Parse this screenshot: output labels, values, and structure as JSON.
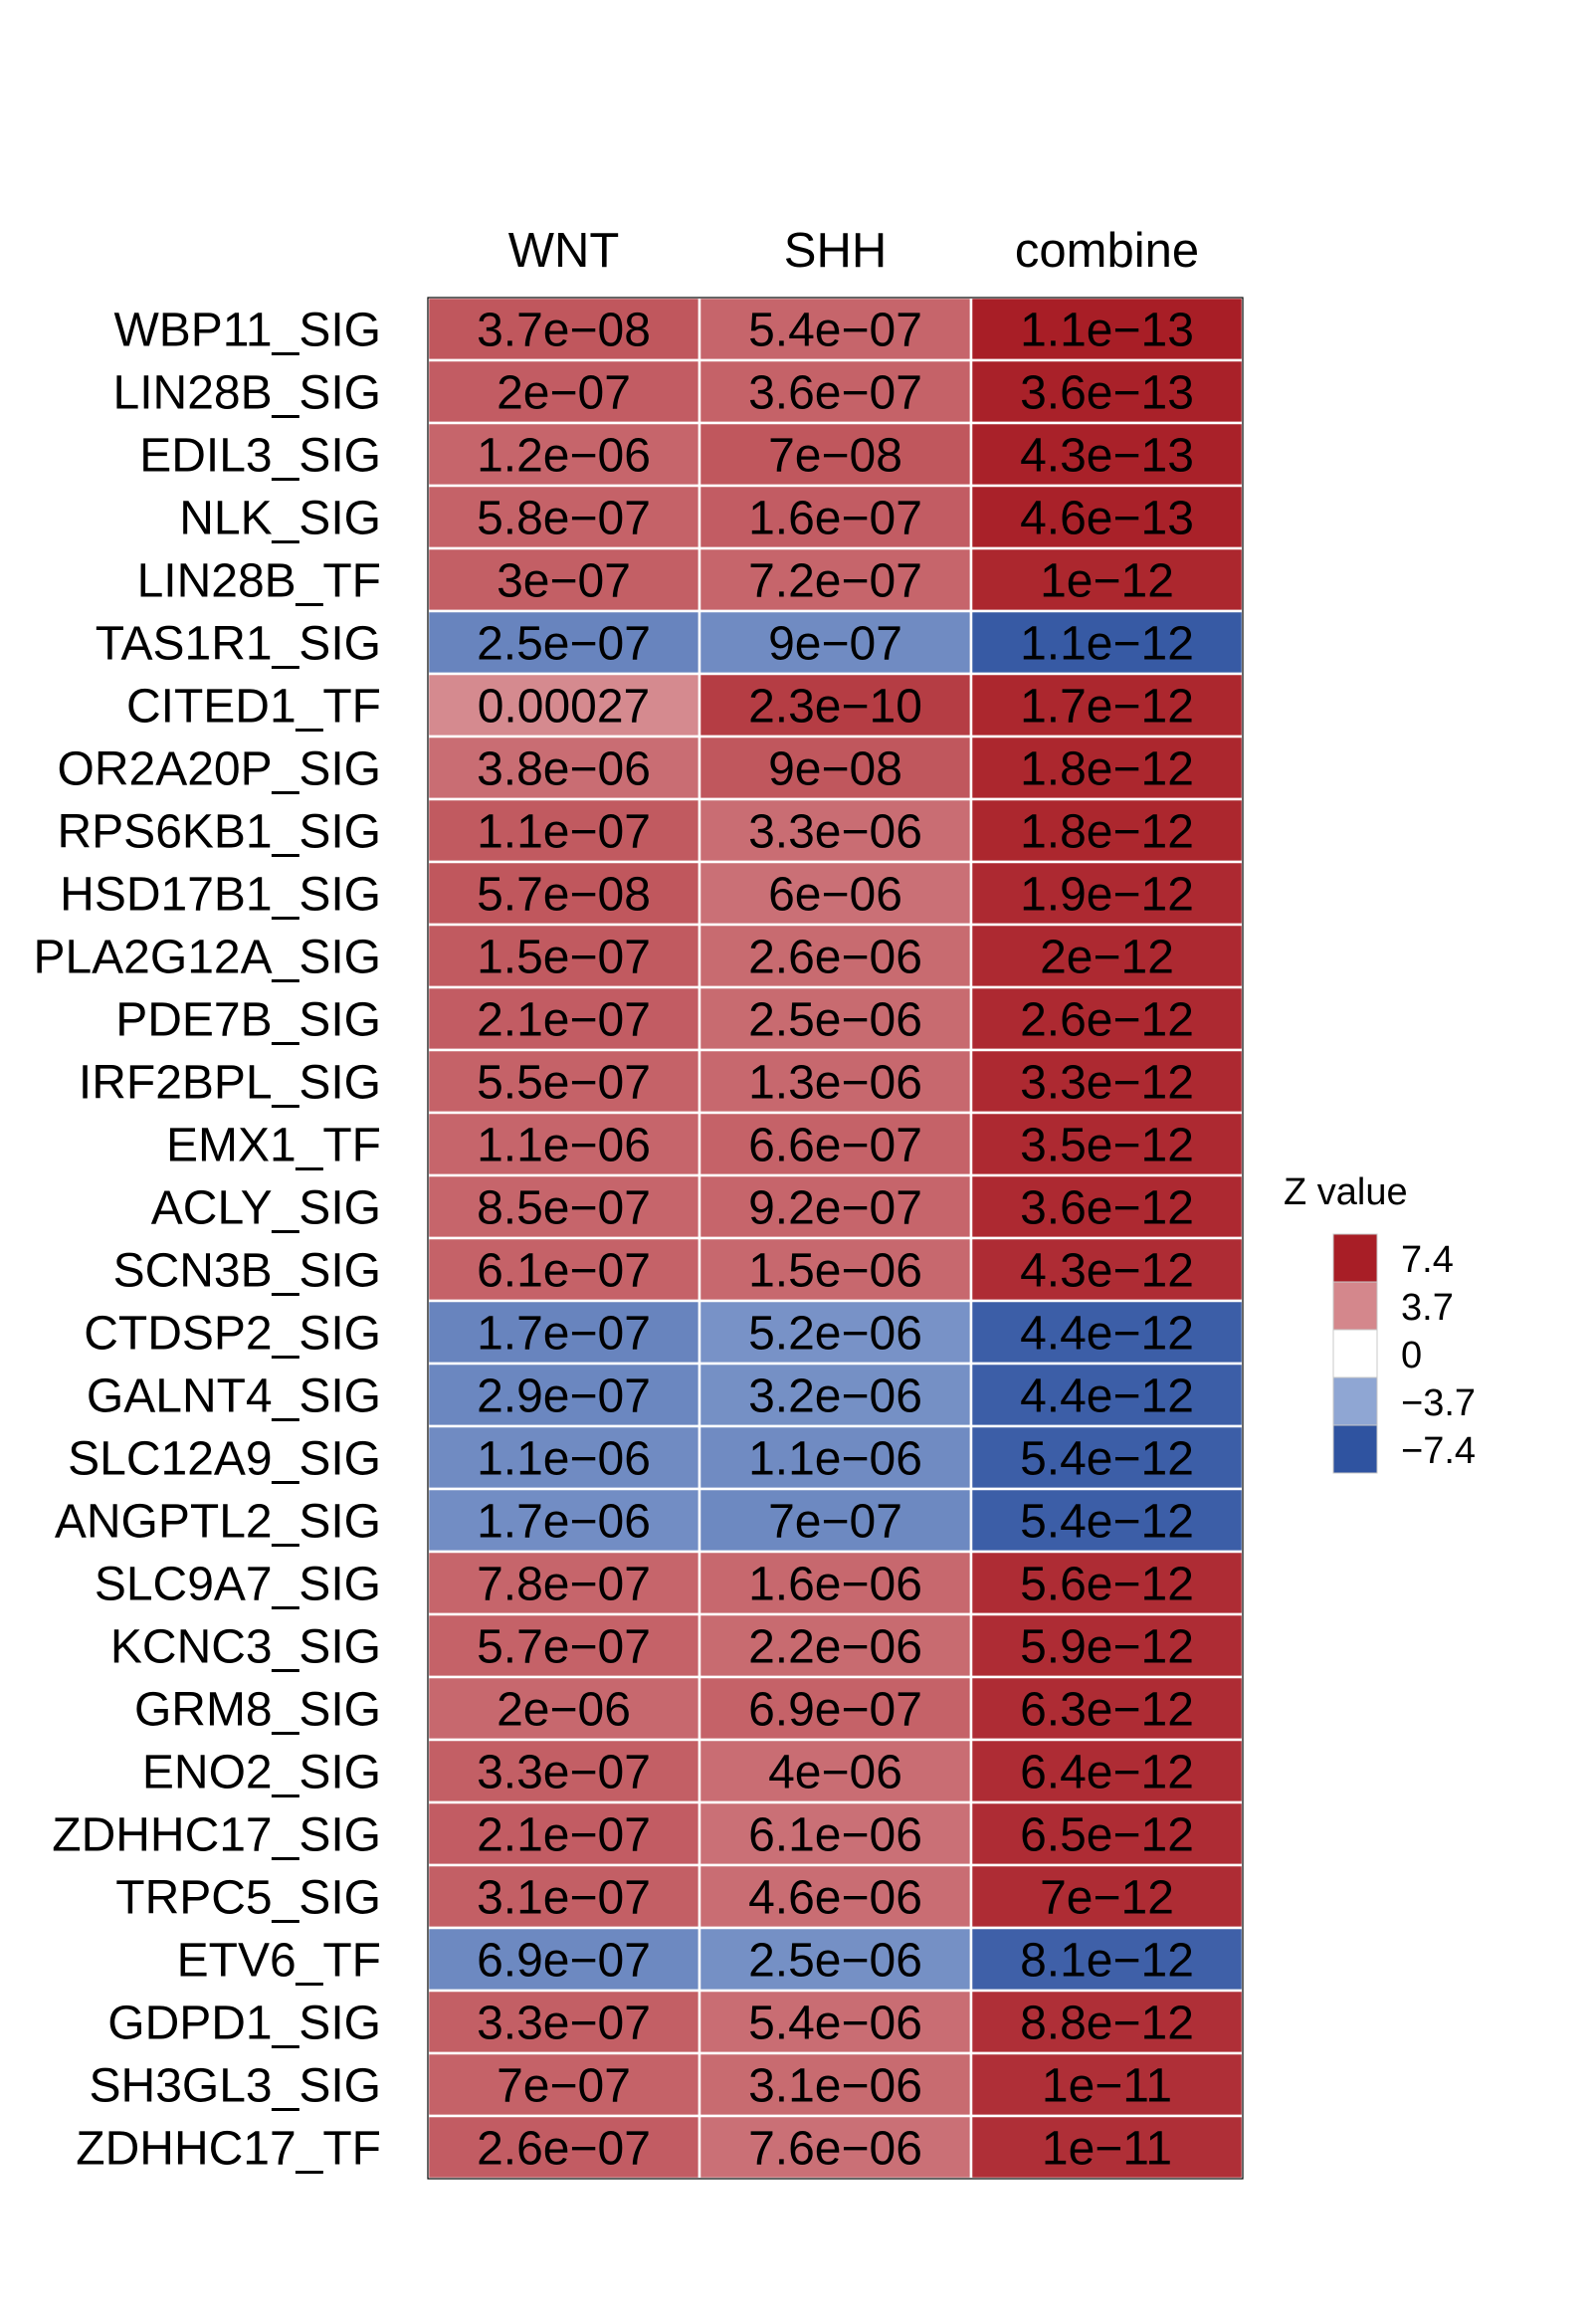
{
  "chart_data": {
    "type": "heatmap",
    "columns": [
      "WNT",
      "SHH",
      "combine"
    ],
    "rows": [
      {
        "label": "WBP11_SIG",
        "z": [
          5.4,
          4.9,
          7.4
        ],
        "p": [
          "3.7e−08",
          "5.4e−07",
          "1.1e−13"
        ]
      },
      {
        "label": "LIN28B_SIG",
        "z": [
          5.2,
          5.0,
          7.3
        ],
        "p": [
          "2e−07",
          "3.6e−07",
          "3.6e−13"
        ]
      },
      {
        "label": "EDIL3_SIG",
        "z": [
          4.9,
          5.4,
          7.3
        ],
        "p": [
          "1.2e−06",
          "7e−08",
          "4.3e−13"
        ]
      },
      {
        "label": "NLK_SIG",
        "z": [
          5.0,
          5.2,
          7.3
        ],
        "p": [
          "5.8e−07",
          "1.6e−07",
          "4.6e−13"
        ]
      },
      {
        "label": "LIN28B_TF",
        "z": [
          5.1,
          4.9,
          7.1
        ],
        "p": [
          "3e−07",
          "7.2e−07",
          "1e−12"
        ]
      },
      {
        "label": "TAS1R1_SIG",
        "z": [
          -5.2,
          -4.9,
          -7.1
        ],
        "p": [
          "2.5e−07",
          "9e−07",
          "1.1e−12"
        ]
      },
      {
        "label": "CITED1_TF",
        "z": [
          3.6,
          6.3,
          7.1
        ],
        "p": [
          "0.00027",
          "2.3e−10",
          "1.7e−12"
        ]
      },
      {
        "label": "OR2A20P_SIG",
        "z": [
          4.6,
          5.4,
          7.1
        ],
        "p": [
          "3.8e−06",
          "9e−08",
          "1.8e−12"
        ]
      },
      {
        "label": "RPS6KB1_SIG",
        "z": [
          5.3,
          4.6,
          7.1
        ],
        "p": [
          "1.1e−07",
          "3.3e−06",
          "1.8e−12"
        ]
      },
      {
        "label": "HSD17B1_SIG",
        "z": [
          5.4,
          4.5,
          7.0
        ],
        "p": [
          "5.7e−08",
          "6e−06",
          "1.9e−12"
        ]
      },
      {
        "label": "PLA2G12A_SIG",
        "z": [
          5.3,
          4.7,
          7.0
        ],
        "p": [
          "1.5e−07",
          "2.6e−06",
          "2e−12"
        ]
      },
      {
        "label": "PDE7B_SIG",
        "z": [
          5.2,
          4.7,
          7.0
        ],
        "p": [
          "2.1e−07",
          "2.5e−06",
          "2.6e−12"
        ]
      },
      {
        "label": "IRF2BPL_SIG",
        "z": [
          5.0,
          4.8,
          7.0
        ],
        "p": [
          "5.5e−07",
          "1.3e−06",
          "3.3e−12"
        ]
      },
      {
        "label": "EMX1_TF",
        "z": [
          4.9,
          5.0,
          7.0
        ],
        "p": [
          "1.1e−06",
          "6.6e−07",
          "3.5e−12"
        ]
      },
      {
        "label": "ACLY_SIG",
        "z": [
          4.9,
          4.9,
          7.0
        ],
        "p": [
          "8.5e−07",
          "9.2e−07",
          "3.6e−12"
        ]
      },
      {
        "label": "SCN3B_SIG",
        "z": [
          5.0,
          4.8,
          6.9
        ],
        "p": [
          "6.1e−07",
          "1.5e−06",
          "4.3e−12"
        ]
      },
      {
        "label": "CTDSP2_SIG",
        "z": [
          -5.2,
          -4.6,
          -6.9
        ],
        "p": [
          "1.7e−07",
          "5.2e−06",
          "4.4e−12"
        ]
      },
      {
        "label": "GALNT4_SIG",
        "z": [
          -5.1,
          -4.7,
          -6.9
        ],
        "p": [
          "2.9e−07",
          "3.2e−06",
          "4.4e−12"
        ]
      },
      {
        "label": "SLC12A9_SIG",
        "z": [
          -4.9,
          -4.9,
          -6.9
        ],
        "p": [
          "1.1e−06",
          "1.1e−06",
          "5.4e−12"
        ]
      },
      {
        "label": "ANGPTL2_SIG",
        "z": [
          -4.8,
          -5.0,
          -6.9
        ],
        "p": [
          "1.7e−06",
          "7e−07",
          "5.4e−12"
        ]
      },
      {
        "label": "SLC9A7_SIG",
        "z": [
          4.9,
          4.8,
          6.9
        ],
        "p": [
          "7.8e−07",
          "1.6e−06",
          "5.6e−12"
        ]
      },
      {
        "label": "KCNC3_SIG",
        "z": [
          5.0,
          4.7,
          6.9
        ],
        "p": [
          "5.7e−07",
          "2.2e−06",
          "5.9e−12"
        ]
      },
      {
        "label": "GRM8_SIG",
        "z": [
          4.8,
          5.0,
          6.9
        ],
        "p": [
          "2e−06",
          "6.9e−07",
          "6.3e−12"
        ]
      },
      {
        "label": "ENO2_SIG",
        "z": [
          5.1,
          4.6,
          6.9
        ],
        "p": [
          "3.3e−07",
          "4e−06",
          "6.4e−12"
        ]
      },
      {
        "label": "ZDHHC17_SIG",
        "z": [
          5.2,
          4.5,
          6.9
        ],
        "p": [
          "2.1e−07",
          "6.1e−06",
          "6.5e−12"
        ]
      },
      {
        "label": "TRPC5_SIG",
        "z": [
          5.1,
          4.6,
          6.9
        ],
        "p": [
          "3.1e−07",
          "4.6e−06",
          "7e−12"
        ]
      },
      {
        "label": "ETV6_TF",
        "z": [
          -5.0,
          -4.7,
          -6.8
        ],
        "p": [
          "6.9e−07",
          "2.5e−06",
          "8.1e−12"
        ]
      },
      {
        "label": "GDPD1_SIG",
        "z": [
          5.1,
          4.6,
          6.8
        ],
        "p": [
          "3.3e−07",
          "5.4e−06",
          "8.8e−12"
        ]
      },
      {
        "label": "SH3GL3_SIG",
        "z": [
          5.0,
          4.7,
          6.8
        ],
        "p": [
          "7e−07",
          "3.1e−06",
          "1e−11"
        ]
      },
      {
        "label": "ZDHHC17_TF",
        "z": [
          5.2,
          4.5,
          6.8
        ],
        "p": [
          "2.6e−07",
          "7.6e−06",
          "1e−11"
        ]
      }
    ],
    "color_scale": {
      "stops": [
        -7.4,
        -3.7,
        0,
        3.7,
        7.4
      ],
      "colors": [
        "#2f53a0",
        "#8fa6d3",
        "#ffffff",
        "#d4878c",
        "#a81e26"
      ]
    },
    "legend": {
      "title": "Z value",
      "ticks": [
        "7.4",
        "3.7",
        "0",
        "−3.7",
        "−7.4"
      ],
      "colors": [
        "#a81e26",
        "#d4878c",
        "#ffffff",
        "#8fa6d3",
        "#2f53a0"
      ],
      "placement": "right"
    }
  }
}
